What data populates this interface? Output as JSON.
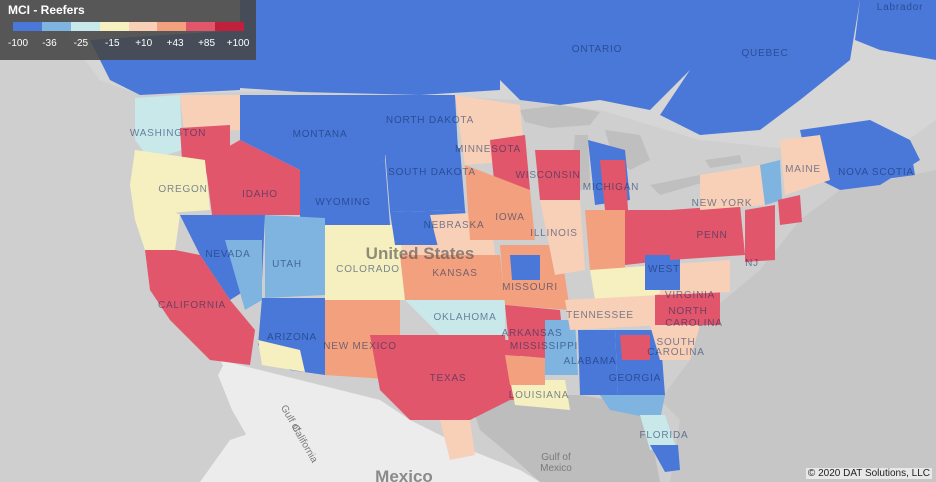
{
  "legend": {
    "title": "MCI - Reefers",
    "ticks": [
      "-100",
      "-36",
      "-25",
      "-15",
      "+10",
      "+43",
      "+85",
      "+100"
    ],
    "colors": [
      "#4a78d9",
      "#7fb3e0",
      "#c8e8ea",
      "#f6f0c0",
      "#f8d0b8",
      "#f2a07e",
      "#e2566b",
      "#c0203c"
    ]
  },
  "labels": {
    "ontario": "ONTARIO",
    "quebec": "QUEBEC",
    "labrador": "Labrador",
    "washington": "WASHINGTON",
    "oregon": "OREGON",
    "idaho": "IDAHO",
    "montana": "MONTANA",
    "wyoming": "WYOMING",
    "nevada": "NEVADA",
    "utah": "UTAH",
    "colorado": "COLORADO",
    "california": "CALIFORNIA",
    "arizona": "ARIZONA",
    "new_mexico": "NEW MEXICO",
    "north_dakota": "NORTH DAKOTA",
    "south_dakota": "SOUTH DAKOTA",
    "nebraska": "NEBRASKA",
    "kansas": "KANSAS",
    "oklahoma": "OKLAHOMA",
    "texas": "TEXAS",
    "minnesota": "MINNESOTA",
    "iowa": "IOWA",
    "missouri": "MISSOURI",
    "arkansas": "ARKANSAS",
    "louisiana": "LOUISIANA",
    "wisconsin": "WISCONSIN",
    "michigan": "MICHIGAN",
    "illinois": "ILLINOIS",
    "tennessee": "TENNESSEE",
    "mississippi": "MISSISSIPPI",
    "alabama": "ALABAMA",
    "georgia": "GEORGIA",
    "florida": "FLORIDA",
    "west_virginia": "WEST",
    "virginia": "VIRGINIA",
    "north_carolina": "NORTH",
    "carolina": "CAROLINA",
    "south_carolina": "SOUTH",
    "south_carolina_2": "CAROLINA",
    "pennsylvania": "PENN",
    "new_york": "NEW YORK",
    "nj": "NJ",
    "maine": "MAINE",
    "nova_scotia": "NOVA SCOTIA",
    "united_states": "United States",
    "mexico": "Mexico",
    "gulf_of_mexico_1": "Gulf of",
    "gulf_of_mexico_2": "Mexico",
    "gulf_of_california_1": "Gulf of",
    "gulf_of_california_2": "California"
  },
  "credit": "© 2020 DAT Solutions, LLC"
}
